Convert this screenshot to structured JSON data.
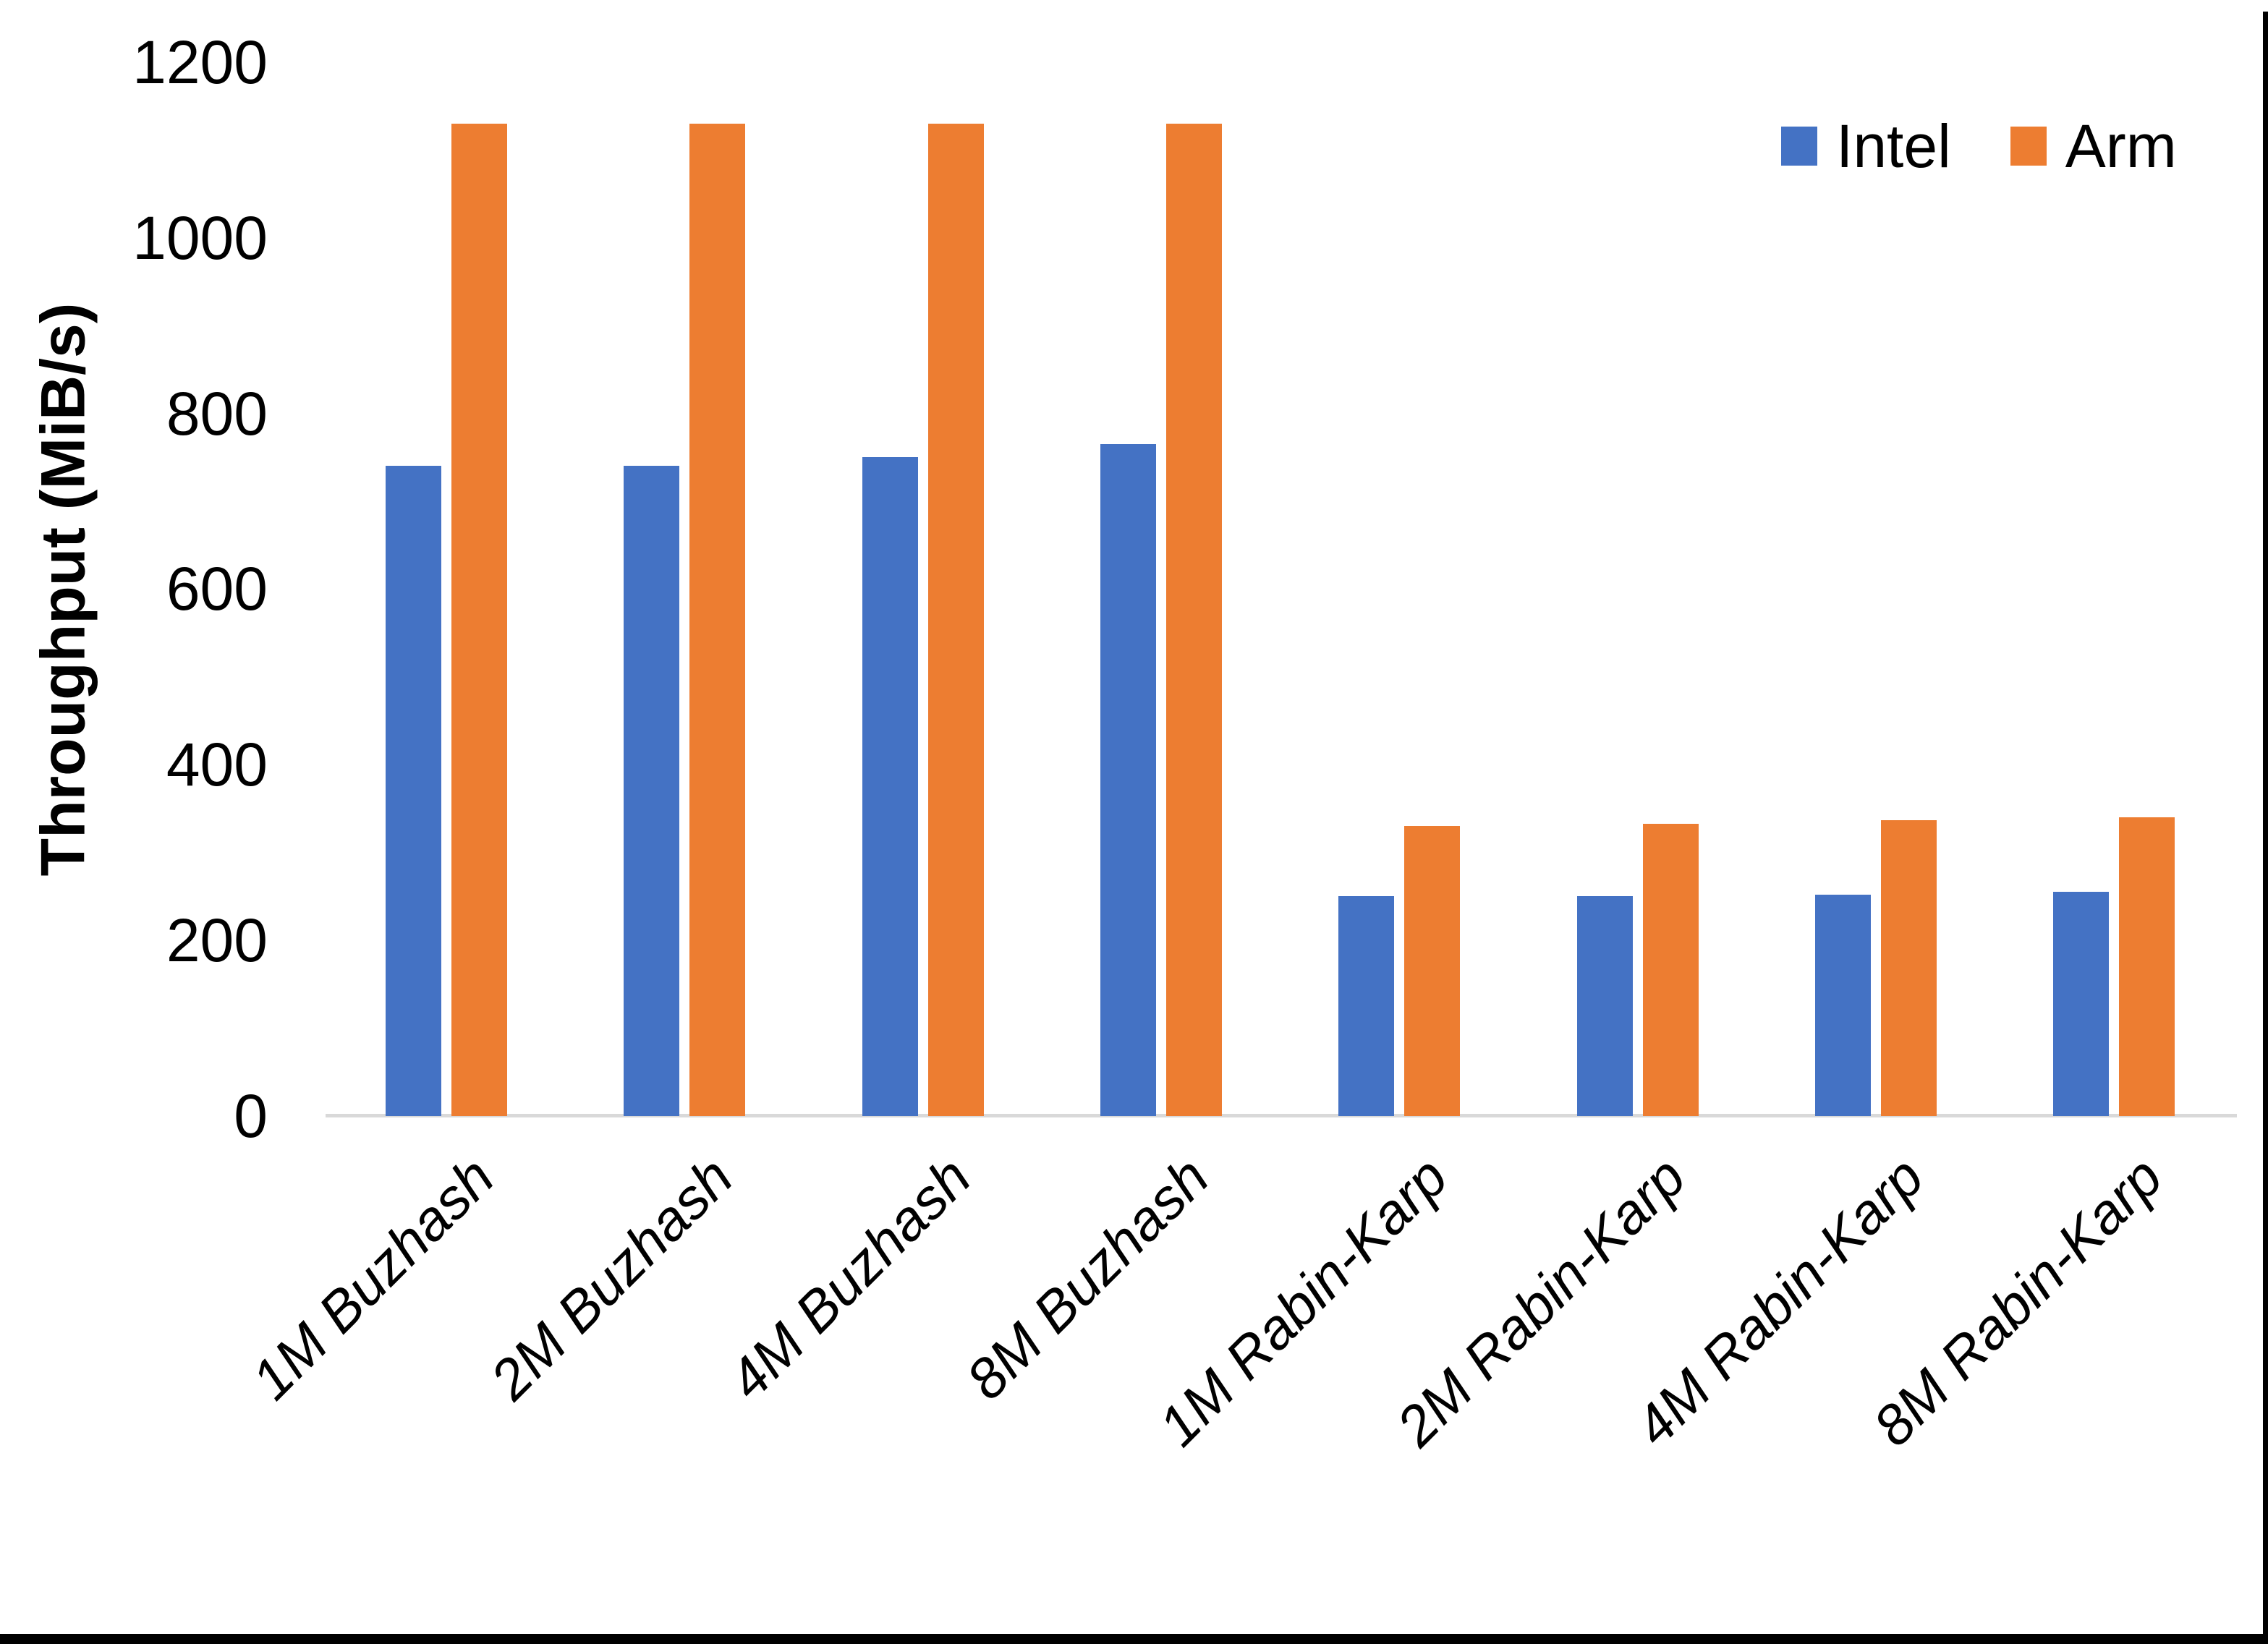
{
  "chart_data": {
    "type": "bar",
    "title": "",
    "xlabel": "",
    "ylabel": "Throughput (MiB/s)",
    "ylim": [
      0,
      1200
    ],
    "yticks": [
      0,
      200,
      400,
      600,
      800,
      1000,
      1200
    ],
    "grid": false,
    "legend_position": "top-right",
    "categories": [
      "1M Buzhash",
      "2M Buzhash",
      "4M Buzhash",
      "8M Buzhash",
      "1M Rabin-Karp",
      "2M Rabin-Karp",
      "4M Rabin-Karp",
      "8M Rabin-Karp"
    ],
    "series": [
      {
        "name": "Intel",
        "color": "#4472c4",
        "values": [
          740,
          740,
          750,
          765,
          250,
          250,
          252,
          255
        ]
      },
      {
        "name": "Arm",
        "color": "#ed7d31",
        "values": [
          1130,
          1130,
          1130,
          1130,
          330,
          333,
          337,
          340
        ]
      }
    ]
  },
  "legend": {
    "items": [
      {
        "label": "Intel",
        "color": "#4472c4"
      },
      {
        "label": "Arm",
        "color": "#ed7d31"
      }
    ]
  },
  "colors": {
    "axis_line": "#d9d9d9",
    "text": "#000000",
    "border": "#000000",
    "background": "#ffffff"
  }
}
